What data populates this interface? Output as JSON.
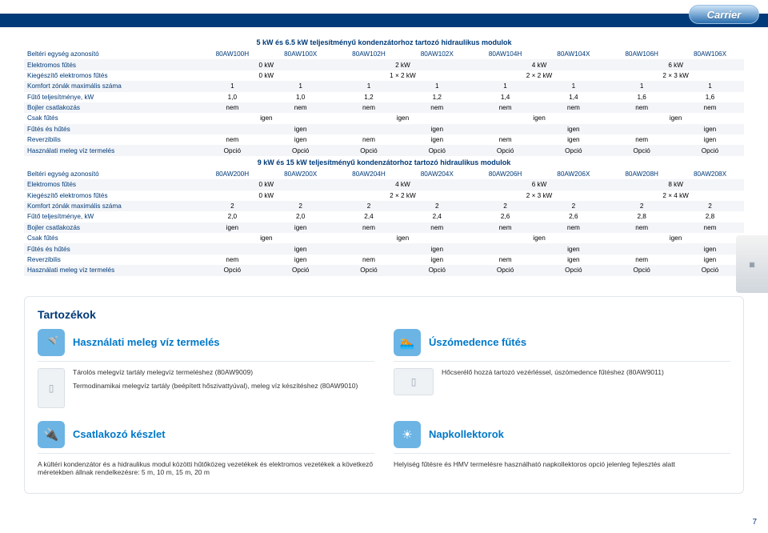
{
  "brand": "Carrier",
  "page_number": "7",
  "table1": {
    "title": "5 kW és 6.5 kW teljesítményű kondenzátorhoz tartozó hidraulikus modulok",
    "col_ids": [
      "80AW100H",
      "80AW100X",
      "80AW102H",
      "80AW102X",
      "80AW104H",
      "80AW104X",
      "80AW106H",
      "80AW106X"
    ],
    "rows": [
      {
        "label": "Beltéri egység azonosító",
        "spanmode": "ids"
      },
      {
        "label": "Elektromos fűtés",
        "vals": [
          "0 kW",
          "",
          "2 kW",
          "",
          "4 kW",
          "",
          "6 kW",
          ""
        ],
        "pair": true
      },
      {
        "label": "Kiegészítő elektromos fűtés",
        "vals": [
          "0 kW",
          "",
          "1 × 2 kW",
          "",
          "2 × 2 kW",
          "",
          "2 × 3 kW",
          ""
        ],
        "pair": true
      },
      {
        "label": "Komfort zónák maximális száma",
        "vals": [
          "1",
          "1",
          "1",
          "1",
          "1",
          "1",
          "1",
          "1"
        ]
      },
      {
        "label": "Fűtő teljesítménye, kW",
        "vals": [
          "1,0",
          "1,0",
          "1,2",
          "1,2",
          "1,4",
          "1,4",
          "1,6",
          "1,6"
        ]
      },
      {
        "label": "Bojler csatlakozás",
        "vals": [
          "nem",
          "nem",
          "nem",
          "nem",
          "nem",
          "nem",
          "nem",
          "nem"
        ]
      },
      {
        "label": "Csak fűtés",
        "vals": [
          "igen",
          "",
          "igen",
          "",
          "igen",
          "",
          "igen",
          ""
        ],
        "pair": true
      },
      {
        "label": "Fűtés és hűtés",
        "vals": [
          "",
          "igen",
          "",
          "igen",
          "",
          "igen",
          "",
          "igen"
        ]
      },
      {
        "label": "Reverzibilis",
        "vals": [
          "nem",
          "igen",
          "nem",
          "igen",
          "nem",
          "igen",
          "nem",
          "igen"
        ]
      },
      {
        "label": "Használati meleg víz termelés",
        "vals": [
          "Opció",
          "Opció",
          "Opció",
          "Opció",
          "Opció",
          "Opció",
          "Opció",
          "Opció"
        ]
      }
    ]
  },
  "table2": {
    "title": "9 kW és 15 kW teljesítményű kondenzátorhoz tartozó hidraulikus modulok",
    "col_ids": [
      "80AW200H",
      "80AW200X",
      "80AW204H",
      "80AW204X",
      "80AW206H",
      "80AW206X",
      "80AW208H",
      "80AW208X"
    ],
    "rows": [
      {
        "label": "Beltéri egység azonosító",
        "spanmode": "ids"
      },
      {
        "label": "Elektromos fűtés",
        "vals": [
          "0 kW",
          "",
          "4 kW",
          "",
          "6 kW",
          "",
          "8 kW",
          ""
        ],
        "pair": true
      },
      {
        "label": "Kiegészítő elektromos fűtés",
        "vals": [
          "0 kW",
          "",
          "2 × 2 kW",
          "",
          "2 × 3 kW",
          "",
          "2 × 4 kW",
          ""
        ],
        "pair": true
      },
      {
        "label": "Komfort zónák maximális száma",
        "vals": [
          "2",
          "2",
          "2",
          "2",
          "2",
          "2",
          "2",
          "2"
        ]
      },
      {
        "label": "Fűtő teljesítménye, kW",
        "vals": [
          "2,0",
          "2,0",
          "2,4",
          "2,4",
          "2,6",
          "2,6",
          "2,8",
          "2,8"
        ]
      },
      {
        "label": "Bojler csatlakozás",
        "vals": [
          "igen",
          "igen",
          "nem",
          "nem",
          "nem",
          "nem",
          "nem",
          "nem"
        ]
      },
      {
        "label": "Csak fűtés",
        "vals": [
          "igen",
          "",
          "igen",
          "",
          "igen",
          "",
          "igen",
          ""
        ],
        "pair": true
      },
      {
        "label": "Fűtés és hűtés",
        "vals": [
          "",
          "igen",
          "",
          "igen",
          "",
          "igen",
          "",
          "igen"
        ]
      },
      {
        "label": "Reverzibilis",
        "vals": [
          "nem",
          "igen",
          "nem",
          "igen",
          "nem",
          "igen",
          "nem",
          "igen"
        ]
      },
      {
        "label": "Használati meleg víz termelés",
        "vals": [
          "Opció",
          "Opció",
          "Opció",
          "Opció",
          "Opció",
          "Opció",
          "Opció",
          "Opció"
        ]
      }
    ]
  },
  "accessories": {
    "heading": "Tartozékok",
    "items": [
      {
        "icon": "shower-icon",
        "title": "Használati meleg víz termelés",
        "lines": [
          "Tárolós melegvíz tartály melegvíz termeléshez (80AW9009)",
          "Termodinamikai melegvíz tartály (beépített hőszivattyúval), meleg víz készítéshez (80AW9010)"
        ],
        "thumb": "tank"
      },
      {
        "icon": "pool-icon",
        "title": "Úszómedence fűtés",
        "lines": [
          "Hőcserélő hozzá tartozó vezérléssel, úszómedence fűtéshez (80AW9011)"
        ],
        "thumb": "hx"
      },
      {
        "icon": "connector-icon",
        "title": "Csatlakozó készlet",
        "lines": [
          "A kültéri kondenzátor és a hidraulikus modul közötti hűtőközeg vezetékek és elektromos vezetékek a következő méretekben állnak rendelkezésre: 5 m, 10 m, 15 m, 20 m"
        ],
        "thumb": null
      },
      {
        "icon": "solar-icon",
        "title": "Napkollektorok",
        "lines": [
          "Helyiség fűtésre és HMV termelésre használható napkollektoros opció jelenleg fejlesztés alatt"
        ],
        "thumb": null
      }
    ]
  },
  "colors": {
    "brand_navy": "#003a78",
    "brand_blue": "#0078c8",
    "row_alt": "#f3f5f8",
    "icon_bg": "#6cb4e4"
  }
}
